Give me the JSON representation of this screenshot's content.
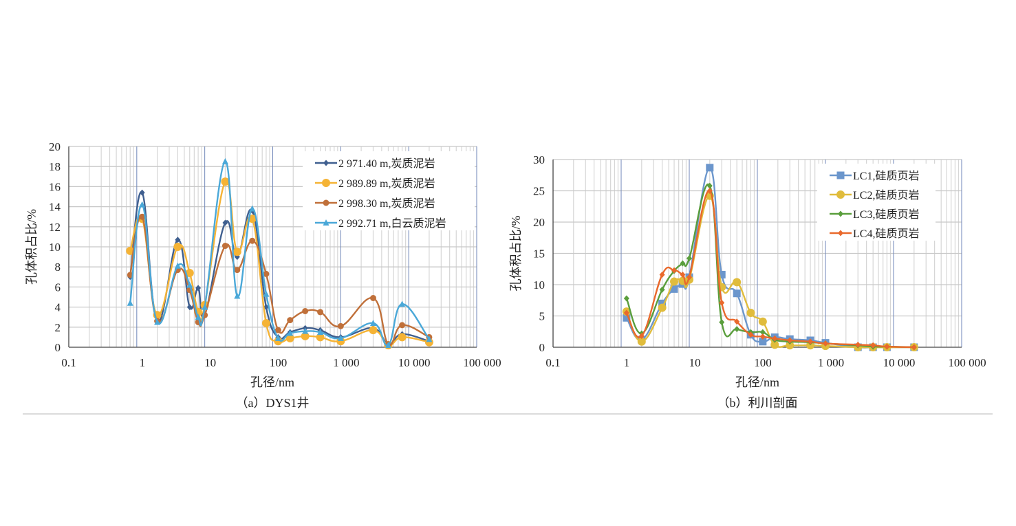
{
  "chart_data": [
    {
      "type": "line",
      "caption": "（a）DYS1井",
      "xlabel": "孔径/nm",
      "ylabel": "孔体积占比/%",
      "xscale": "log",
      "xlim": [
        0.1,
        100000
      ],
      "ylim": [
        0,
        20
      ],
      "ystep": 2,
      "xticks": [
        0.1,
        1,
        10,
        100,
        1000,
        10000,
        100000
      ],
      "xtick_labels": [
        "0.1",
        "1",
        "10",
        "100",
        "1 000",
        "10 000",
        "100 000"
      ],
      "ytick_labels": [
        "0",
        "2",
        "4",
        "6",
        "8",
        "10",
        "12",
        "14",
        "16",
        "18",
        "20"
      ],
      "legend_position": "top-right",
      "grid": true,
      "x": [
        0.8,
        1.2,
        2,
        4,
        6,
        8,
        10,
        20,
        30,
        50,
        80,
        120,
        180,
        300,
        500,
        1000,
        3000,
        5000,
        8000,
        20000
      ],
      "series": [
        {
          "name": "2 971.40 m,炭质泥岩",
          "color": "#3f5f8f",
          "marker": "diamond",
          "values": [
            7.0,
            15.4,
            2.6,
            10.7,
            4.0,
            5.9,
            3.2,
            12.4,
            9.0,
            13.6,
            4.0,
            1.0,
            1.5,
            1.9,
            1.7,
            1.0,
            1.9,
            0.3,
            1.3,
            0.6
          ]
        },
        {
          "name": "2 989.89 m,炭质泥岩",
          "color": "#f5b335",
          "marker": "circle-large",
          "values": [
            9.6,
            12.8,
            3.2,
            10.0,
            7.4,
            3.5,
            4.2,
            16.5,
            9.5,
            12.8,
            2.4,
            0.6,
            0.9,
            1.1,
            1.0,
            0.6,
            1.7,
            0.2,
            1.0,
            0.5
          ]
        },
        {
          "name": "2 998.30 m,炭质泥岩",
          "color": "#c0703a",
          "marker": "circle",
          "values": [
            7.2,
            13.0,
            2.6,
            7.7,
            5.7,
            2.5,
            3.2,
            10.1,
            7.7,
            10.6,
            7.3,
            1.7,
            2.7,
            3.6,
            3.5,
            2.1,
            4.9,
            0.3,
            2.2,
            1.0
          ]
        },
        {
          "name": "2 992.71 m,白云质泥岩",
          "color": "#4aa8d8",
          "marker": "triangle",
          "values": [
            4.4,
            14.2,
            2.5,
            8.1,
            6.2,
            3.0,
            4.0,
            18.5,
            5.1,
            13.8,
            5.3,
            0.9,
            1.4,
            1.6,
            1.5,
            0.9,
            2.4,
            0.2,
            4.3,
            0.8
          ]
        }
      ]
    },
    {
      "type": "line",
      "caption": "（b）利川剖面",
      "xlabel": "孔径/nm",
      "ylabel": "孔体积占比/%",
      "xscale": "log",
      "xlim": [
        0.1,
        100000
      ],
      "ylim": [
        0,
        30
      ],
      "ystep": 5,
      "xticks": [
        0.1,
        1,
        10,
        100,
        1000,
        10000,
        100000
      ],
      "xtick_labels": [
        "0.1",
        "1",
        "10",
        "100",
        "1 000",
        "10 000",
        "100 000"
      ],
      "ytick_labels": [
        "0",
        "5",
        "10",
        "15",
        "20",
        "25",
        "30"
      ],
      "legend_position": "top-right",
      "grid": true,
      "x": [
        1.2,
        2,
        4,
        6,
        8,
        10,
        20,
        30,
        50,
        80,
        120,
        180,
        300,
        600,
        1000,
        3000,
        5000,
        8000,
        20000
      ],
      "series": [
        {
          "name": "LC1,硅质页岩",
          "color": "#6b96cc",
          "marker": "square",
          "values": [
            4.7,
            1.2,
            7.0,
            9.3,
            10.1,
            11.2,
            28.7,
            11.6,
            8.6,
            2.0,
            0.9,
            1.6,
            1.3,
            1.1,
            0.7,
            0,
            0,
            0,
            0
          ]
        },
        {
          "name": "LC2,硅质页岩",
          "color": "#e0bc3c",
          "marker": "circle-large",
          "values": [
            5.7,
            0.9,
            6.3,
            10.5,
            10.6,
            10.8,
            24.2,
            9.6,
            10.4,
            5.5,
            4.1,
            0.4,
            0.3,
            0.3,
            0.2,
            0,
            0,
            0,
            0
          ]
        },
        {
          "name": "LC3,硅质页岩",
          "color": "#5a9e3c",
          "marker": "diamond",
          "values": [
            7.8,
            2.2,
            9.2,
            12.2,
            13.4,
            14.2,
            25.8,
            4.0,
            2.9,
            2.4,
            2.4,
            1.2,
            0.9,
            0.8,
            0.6,
            0.3,
            0.1,
            0.1,
            0
          ]
        },
        {
          "name": "LC4,硅质页岩",
          "color": "#e9692c",
          "marker": "diamond",
          "values": [
            5.5,
            1.8,
            11.6,
            12.3,
            11.6,
            11.2,
            25.0,
            7.1,
            4.1,
            2.0,
            1.7,
            1.4,
            1.1,
            0.9,
            0.6,
            0.4,
            0.3,
            0.1,
            0
          ]
        }
      ]
    }
  ]
}
